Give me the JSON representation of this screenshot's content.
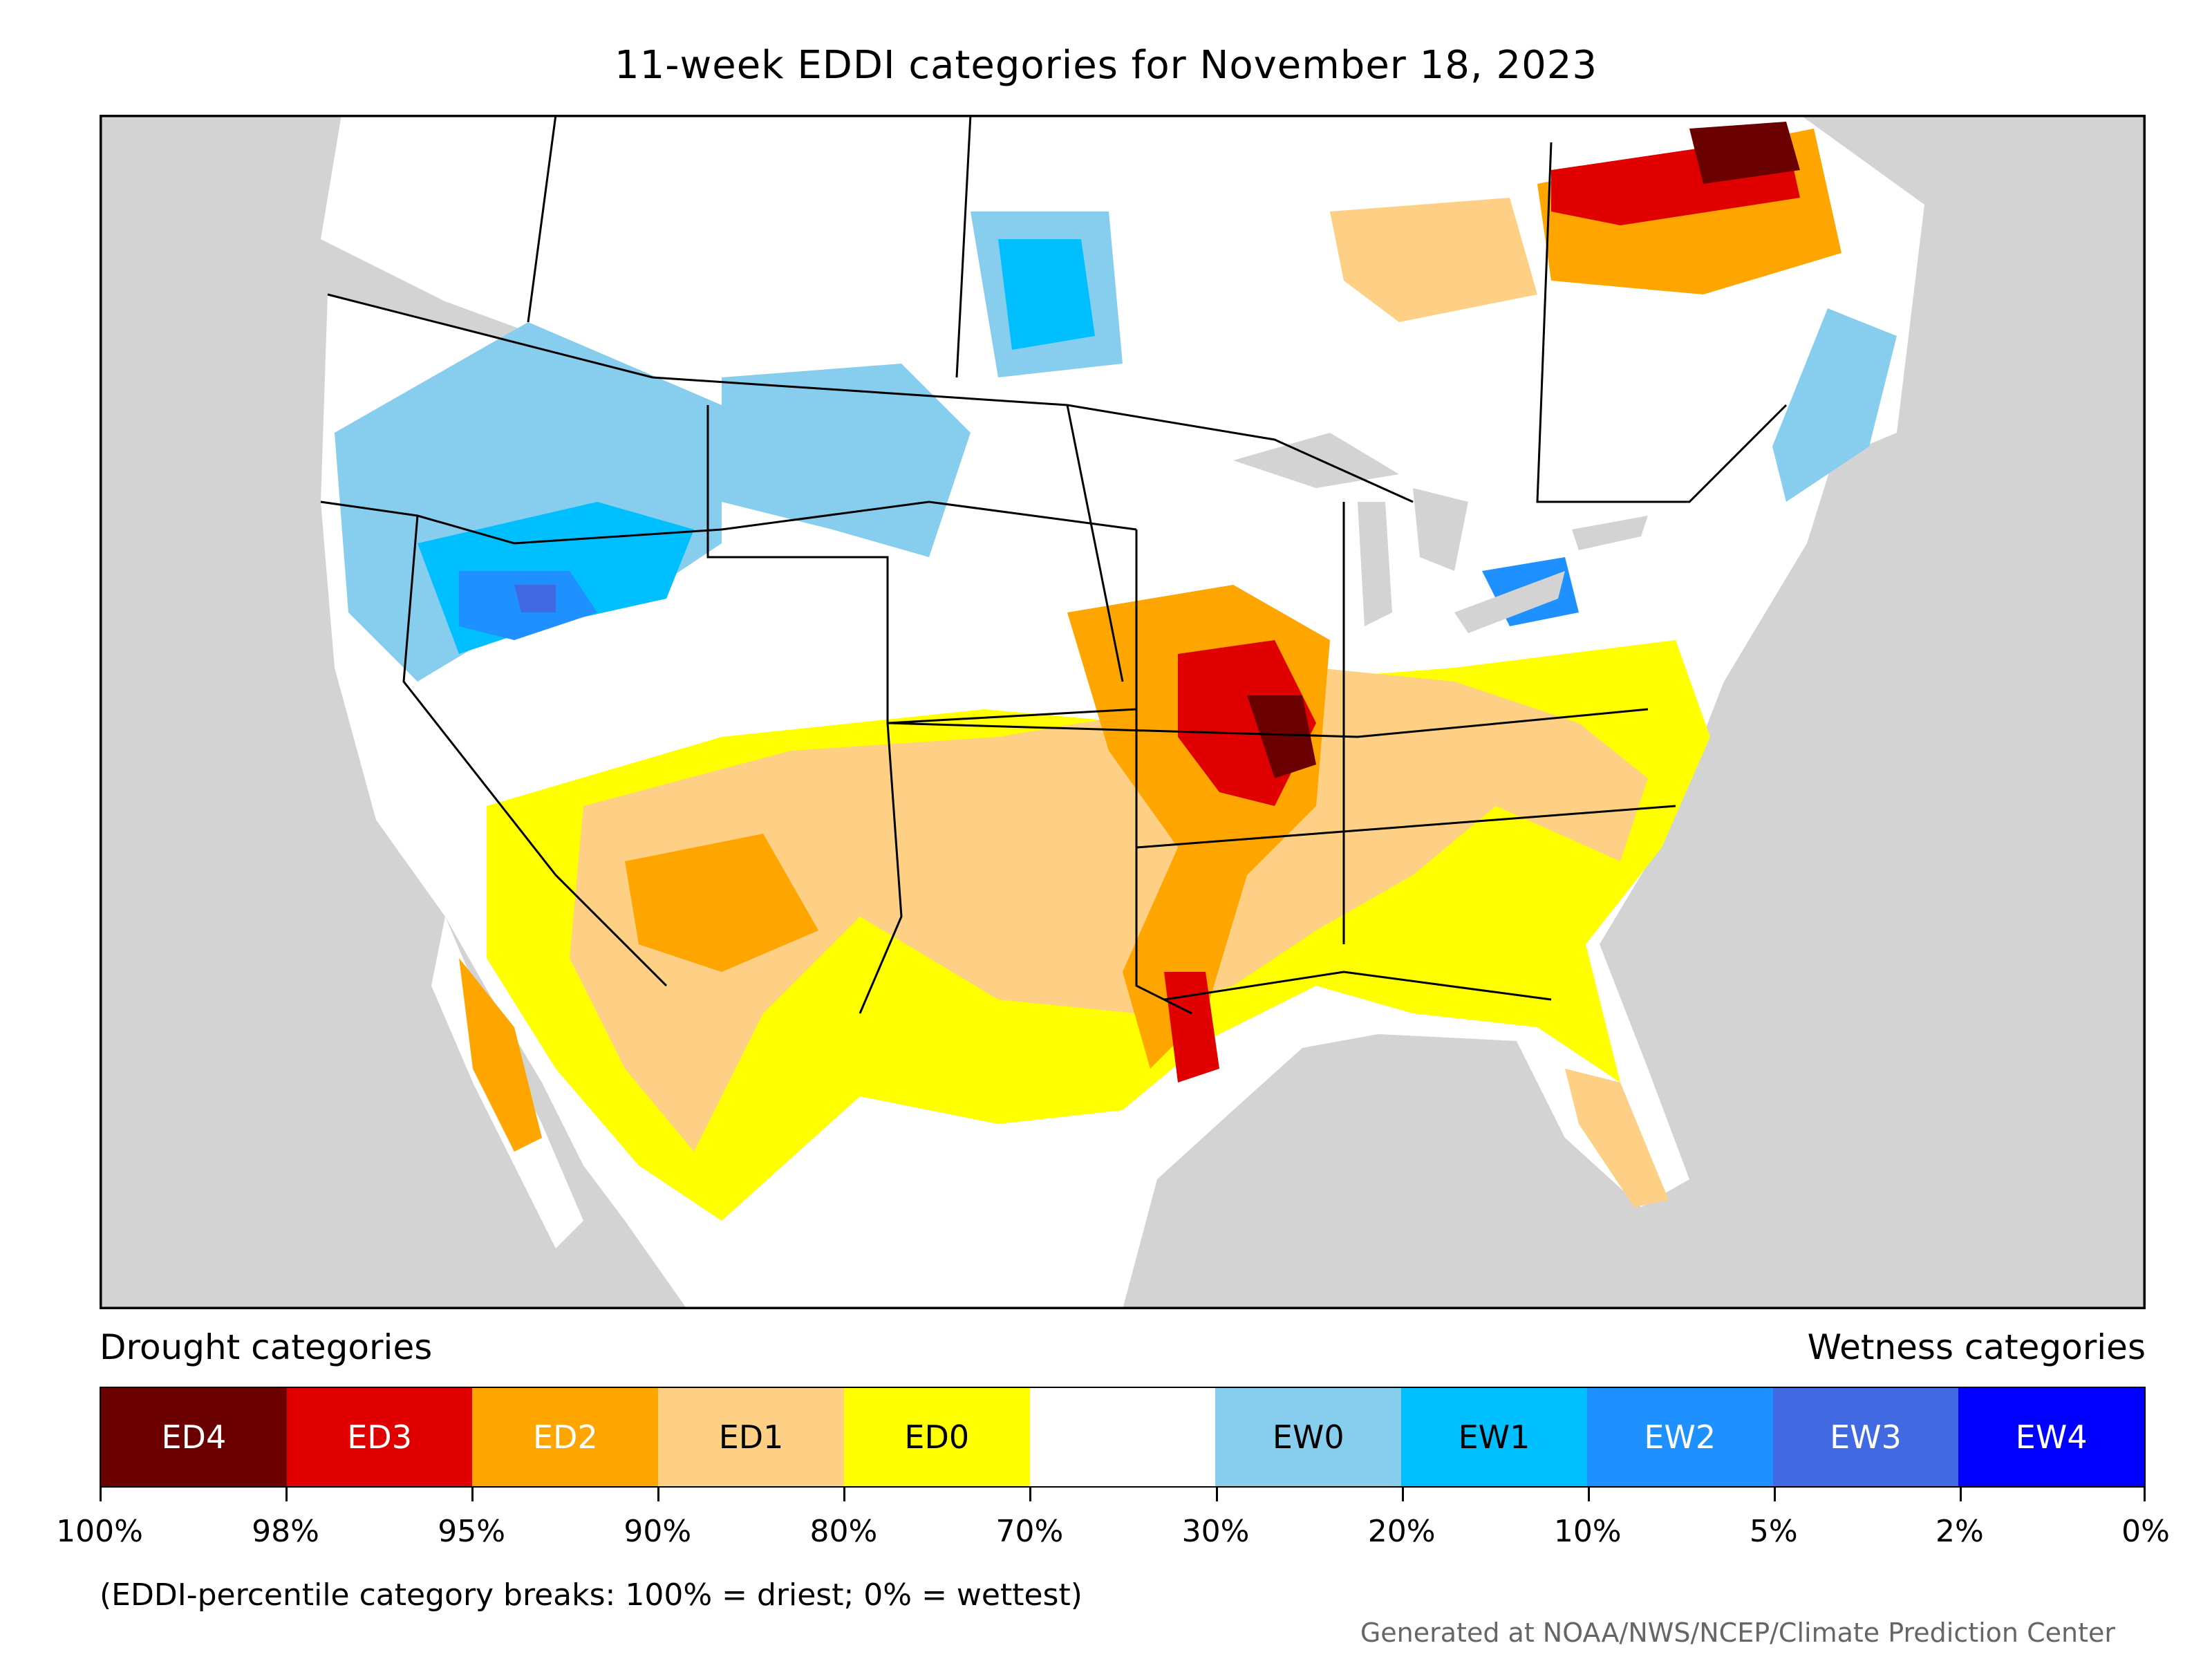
{
  "title": "11-week EDDI categories for November 18, 2023",
  "legend": {
    "drought_heading": "Drought categories",
    "wetness_heading": "Wetness categories",
    "categories": [
      {
        "label": "ED4",
        "color": "#6b0000",
        "text_color": "#ffffff"
      },
      {
        "label": "ED3",
        "color": "#e00000",
        "text_color": "#ffffff"
      },
      {
        "label": "ED2",
        "color": "#ffa500",
        "text_color": "#ffffff"
      },
      {
        "label": "ED1",
        "color": "#fdd086",
        "text_color": "#000000"
      },
      {
        "label": "ED0",
        "color": "#ffff00",
        "text_color": "#000000"
      },
      {
        "label": "",
        "color": "#ffffff",
        "text_color": "#000000"
      },
      {
        "label": "EW0",
        "color": "#87cdee",
        "text_color": "#000000"
      },
      {
        "label": "EW1",
        "color": "#00bfff",
        "text_color": "#000000"
      },
      {
        "label": "EW2",
        "color": "#1e90ff",
        "text_color": "#ffffff"
      },
      {
        "label": "EW3",
        "color": "#4169e1",
        "text_color": "#ffffff"
      },
      {
        "label": "EW4",
        "color": "#0000ff",
        "text_color": "#ffffff"
      }
    ],
    "breaks": [
      "100%",
      "98%",
      "95%",
      "90%",
      "80%",
      "70%",
      "30%",
      "20%",
      "10%",
      "5%",
      "2%",
      "0%"
    ]
  },
  "note": "(EDDI-percentile category breaks: 100% = driest; 0% = wettest)",
  "credit": "Generated at NOAA/NWS/NCEP/Climate Prediction Center"
}
